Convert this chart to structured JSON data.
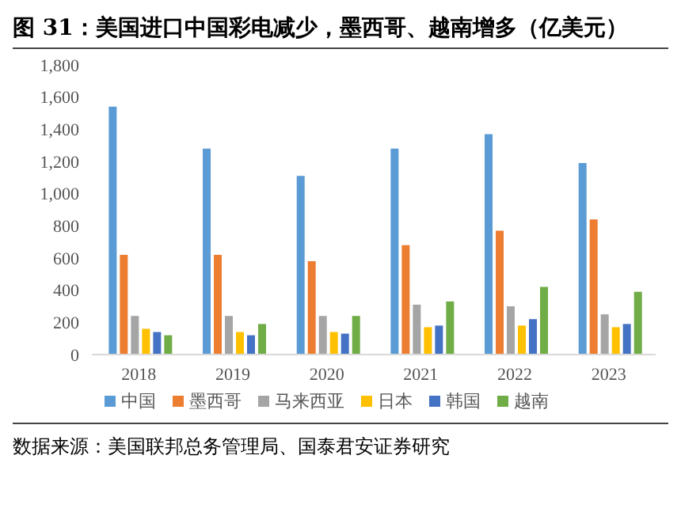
{
  "chart_data": {
    "type": "bar",
    "title": "图 31：美国进口中国彩电减少，墨西哥、越南增多（亿美元）",
    "categories": [
      "2018",
      "2019",
      "2020",
      "2021",
      "2022",
      "2023"
    ],
    "series": [
      {
        "name": "中国",
        "color": "#5b9bd5",
        "values": [
          1540,
          1280,
          1110,
          1280,
          1370,
          1190
        ]
      },
      {
        "name": "墨西哥",
        "color": "#ed7d31",
        "values": [
          620,
          620,
          580,
          680,
          770,
          840
        ]
      },
      {
        "name": "马来西亚",
        "color": "#a5a5a5",
        "values": [
          240,
          240,
          240,
          310,
          300,
          250
        ]
      },
      {
        "name": "日本",
        "color": "#ffc000",
        "values": [
          160,
          140,
          140,
          170,
          180,
          170
        ]
      },
      {
        "name": "韩国",
        "color": "#4472c4",
        "values": [
          140,
          120,
          130,
          180,
          220,
          190
        ]
      },
      {
        "name": "越南",
        "color": "#70ad47",
        "values": [
          120,
          190,
          240,
          330,
          420,
          390
        ]
      }
    ],
    "ylim": [
      0,
      1800
    ],
    "yticks": [
      0,
      200,
      400,
      600,
      800,
      {
        "value": 1000,
        "label": "1,000"
      },
      {
        "value": 1200,
        "label": "1,200"
      },
      {
        "value": 1400,
        "label": "1,400"
      },
      {
        "value": 1600,
        "label": "1,600"
      },
      {
        "value": 1800,
        "label": "1,800"
      }
    ],
    "grid": false,
    "legend": "bottom",
    "annotations": [
      "数据来源：美国联邦总务管理局、国泰君安证券研究"
    ]
  }
}
